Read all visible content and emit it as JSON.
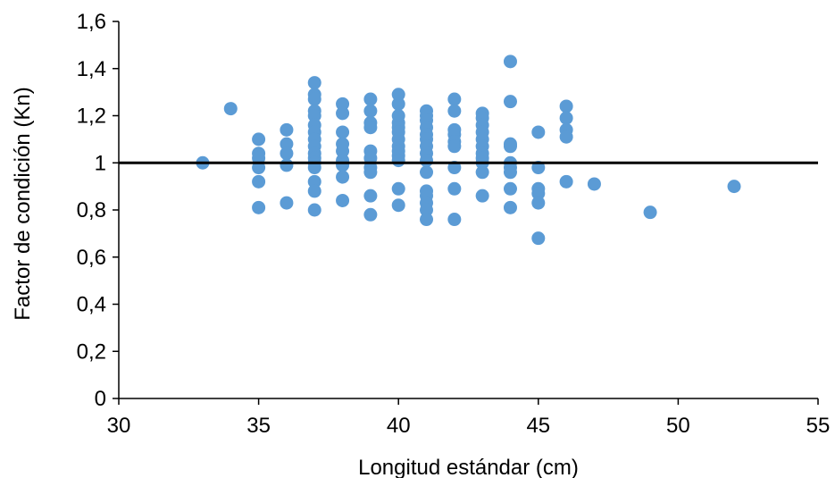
{
  "chart_data": {
    "type": "scatter",
    "title": "",
    "xlabel": "Longitud estándar (cm)",
    "ylabel": "Factor de condición (Kn)",
    "xlim": [
      30,
      55
    ],
    "ylim": [
      0,
      1.6
    ],
    "x_ticks": [
      "30",
      "35",
      "40",
      "45",
      "50",
      "55"
    ],
    "y_ticks": [
      "0",
      "0,2",
      "0,4",
      "0,6",
      "0,8",
      "1",
      "1,2",
      "1,4",
      "1,6"
    ],
    "grid": false,
    "reference_line_y": 1,
    "marker_color": "#5b9bd5",
    "points": [
      [
        33,
        1.0
      ],
      [
        34,
        1.23
      ],
      [
        35,
        1.1
      ],
      [
        35,
        1.04
      ],
      [
        35,
        1.02
      ],
      [
        35,
        0.98
      ],
      [
        35,
        0.92
      ],
      [
        35,
        0.81
      ],
      [
        36,
        1.14
      ],
      [
        36,
        1.08
      ],
      [
        36,
        1.04
      ],
      [
        36,
        0.99
      ],
      [
        36,
        0.83
      ],
      [
        37,
        1.34
      ],
      [
        37,
        1.29
      ],
      [
        37,
        1.27
      ],
      [
        37,
        1.22
      ],
      [
        37,
        1.2
      ],
      [
        37,
        1.16
      ],
      [
        37,
        1.13
      ],
      [
        37,
        1.1
      ],
      [
        37,
        1.07
      ],
      [
        37,
        1.04
      ],
      [
        37,
        1.02
      ],
      [
        37,
        1.0
      ],
      [
        37,
        0.98
      ],
      [
        37,
        0.92
      ],
      [
        37,
        0.88
      ],
      [
        37,
        0.8
      ],
      [
        38,
        1.25
      ],
      [
        38,
        1.21
      ],
      [
        38,
        1.13
      ],
      [
        38,
        1.08
      ],
      [
        38,
        1.05
      ],
      [
        38,
        1.01
      ],
      [
        38,
        0.99
      ],
      [
        38,
        0.94
      ],
      [
        38,
        0.84
      ],
      [
        39,
        1.27
      ],
      [
        39,
        1.22
      ],
      [
        39,
        1.17
      ],
      [
        39,
        1.15
      ],
      [
        39,
        1.05
      ],
      [
        39,
        1.02
      ],
      [
        39,
        0.98
      ],
      [
        39,
        0.96
      ],
      [
        39,
        0.86
      ],
      [
        39,
        0.78
      ],
      [
        40,
        1.29
      ],
      [
        40,
        1.25
      ],
      [
        40,
        1.2
      ],
      [
        40,
        1.17
      ],
      [
        40,
        1.15
      ],
      [
        40,
        1.13
      ],
      [
        40,
        1.1
      ],
      [
        40,
        1.07
      ],
      [
        40,
        1.05
      ],
      [
        40,
        1.03
      ],
      [
        40,
        1.01
      ],
      [
        40,
        0.89
      ],
      [
        40,
        0.82
      ],
      [
        41,
        1.22
      ],
      [
        41,
        1.2
      ],
      [
        41,
        1.18
      ],
      [
        41,
        1.15
      ],
      [
        41,
        1.12
      ],
      [
        41,
        1.1
      ],
      [
        41,
        1.07
      ],
      [
        41,
        1.04
      ],
      [
        41,
        1.01
      ],
      [
        41,
        0.96
      ],
      [
        41,
        0.88
      ],
      [
        41,
        0.86
      ],
      [
        41,
        0.83
      ],
      [
        41,
        0.8
      ],
      [
        41,
        0.76
      ],
      [
        42,
        1.27
      ],
      [
        42,
        1.22
      ],
      [
        42,
        1.14
      ],
      [
        42,
        1.12
      ],
      [
        42,
        1.09
      ],
      [
        42,
        1.07
      ],
      [
        42,
        0.98
      ],
      [
        42,
        0.89
      ],
      [
        42,
        0.76
      ],
      [
        43,
        1.21
      ],
      [
        43,
        1.19
      ],
      [
        43,
        1.16
      ],
      [
        43,
        1.13
      ],
      [
        43,
        1.1
      ],
      [
        43,
        1.07
      ],
      [
        43,
        1.04
      ],
      [
        43,
        1.02
      ],
      [
        43,
        1.0
      ],
      [
        43,
        0.96
      ],
      [
        43,
        0.86
      ],
      [
        44,
        1.43
      ],
      [
        44,
        1.26
      ],
      [
        44,
        1.08
      ],
      [
        44,
        1.07
      ],
      [
        44,
        1.0
      ],
      [
        44,
        0.98
      ],
      [
        44,
        0.96
      ],
      [
        44,
        0.89
      ],
      [
        44,
        0.81
      ],
      [
        45,
        1.13
      ],
      [
        45,
        0.98
      ],
      [
        45,
        0.89
      ],
      [
        45,
        0.87
      ],
      [
        45,
        0.83
      ],
      [
        45,
        0.68
      ],
      [
        46,
        1.24
      ],
      [
        46,
        1.19
      ],
      [
        46,
        1.14
      ],
      [
        46,
        1.11
      ],
      [
        46,
        0.92
      ],
      [
        47,
        0.91
      ],
      [
        49,
        0.79
      ],
      [
        52,
        0.9
      ]
    ]
  }
}
